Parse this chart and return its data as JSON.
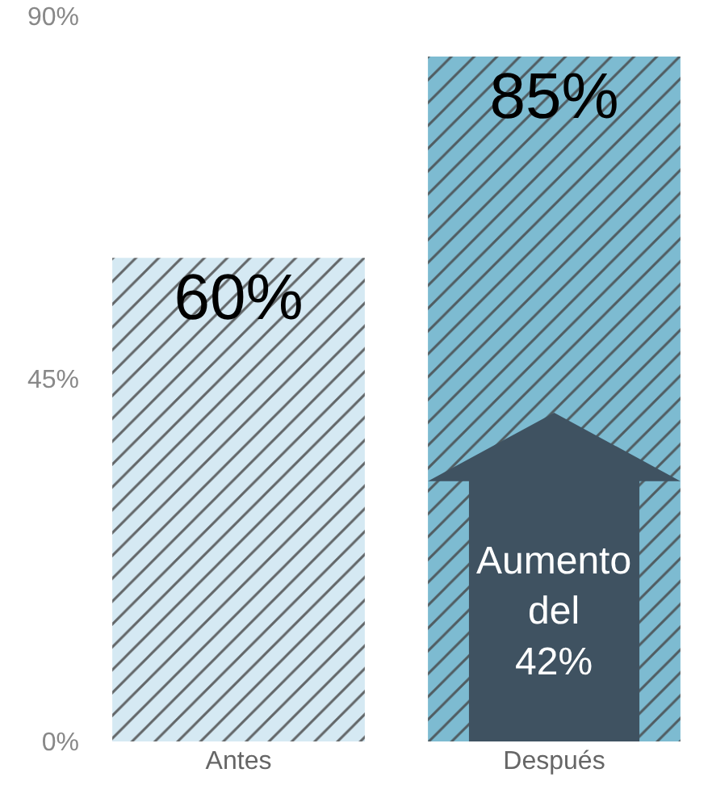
{
  "chart_data": {
    "type": "bar",
    "categories": [
      "Antes",
      "Después"
    ],
    "values": [
      60,
      85
    ],
    "colors": [
      "#d5e9f3",
      "#7dbbd1"
    ],
    "value_labels": [
      "60%",
      "85%"
    ],
    "ylim": [
      0,
      90
    ],
    "yticks": [
      {
        "value": 0,
        "label": "0%"
      },
      {
        "value": 45,
        "label": "45%"
      },
      {
        "value": 90,
        "label": "90%"
      }
    ],
    "legend": false,
    "annotations": [
      "Aumento\ndel\n42%"
    ]
  }
}
